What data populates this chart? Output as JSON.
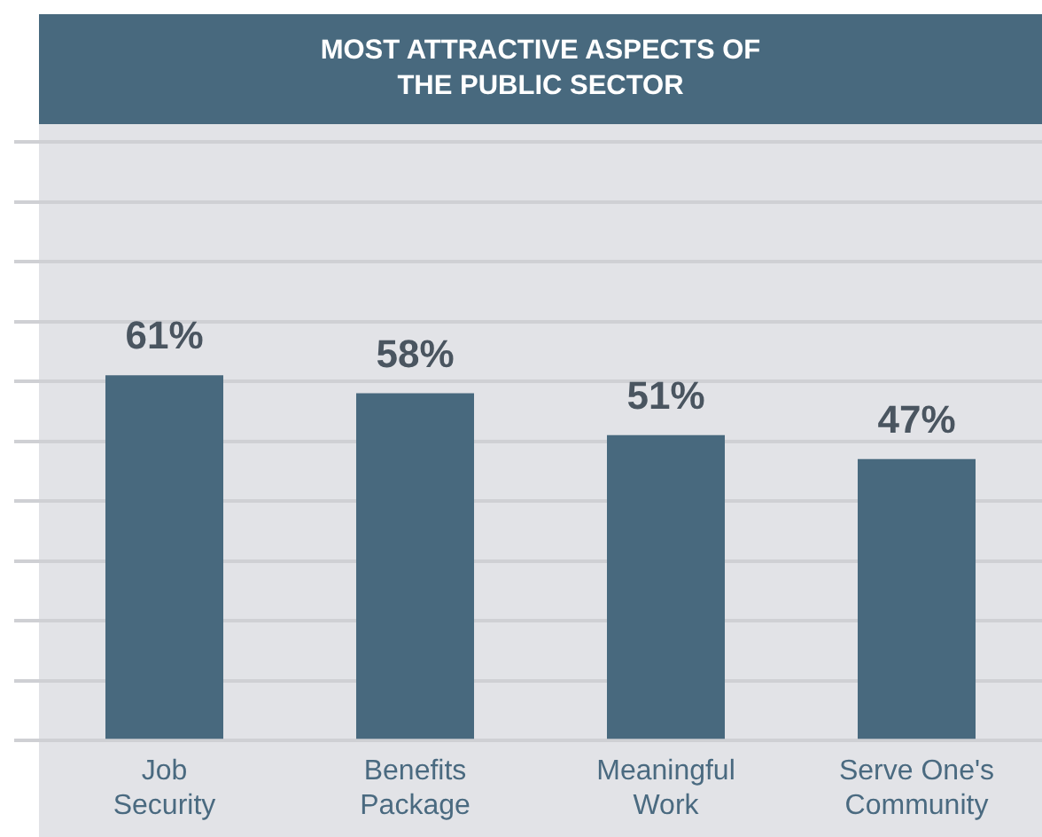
{
  "chart_data": {
    "type": "bar",
    "title": "MOST ATTRACTIVE ASPECTS OF THE PUBLIC SECTOR",
    "categories": [
      "Job Security",
      "Benefits Package",
      "Meaningful Work",
      "Serve One's Community"
    ],
    "values": [
      61,
      58,
      51,
      47
    ],
    "color": "#48697e",
    "value_labels": [
      "61%",
      "58%",
      "51%",
      "47%"
    ],
    "ylim": [
      0,
      100
    ],
    "yticks": [
      {
        "value": 0,
        "label": null
      },
      {
        "value": 10,
        "label": null
      },
      {
        "value": 20,
        "label": null
      },
      {
        "value": 30,
        "label": null
      },
      {
        "value": 40,
        "label": null
      },
      {
        "value": 50,
        "label": null
      },
      {
        "value": 60,
        "label": null
      },
      {
        "value": 70,
        "label": null
      },
      {
        "value": 80,
        "label": null
      },
      {
        "value": 90,
        "label": null
      },
      {
        "value": 100,
        "label": null
      }
    ],
    "grid": "y",
    "tick_labels": "x"
  }
}
